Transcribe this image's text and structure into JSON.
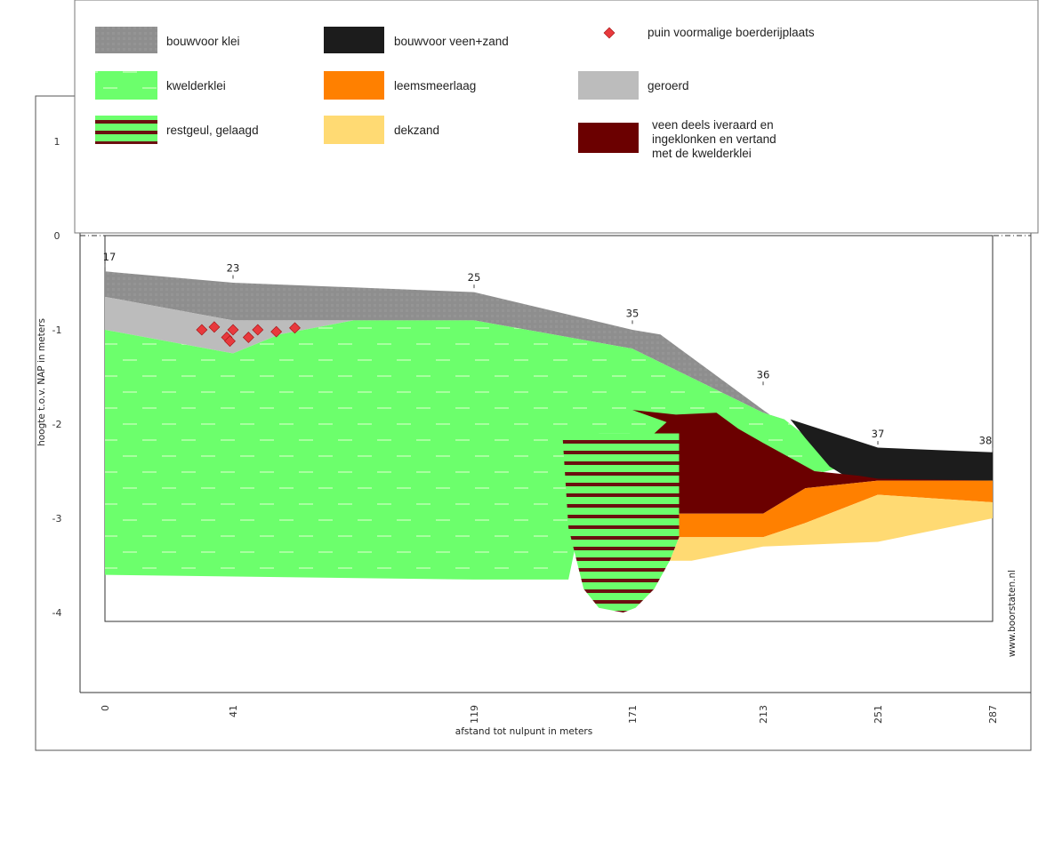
{
  "chart_data": {
    "type": "area",
    "title": "",
    "xlabel": "afstand tot nulpunt in meters",
    "ylabel": "hoogte t.o.v. NAP in meters",
    "x_ticks": [
      0,
      41,
      119,
      171,
      213,
      251,
      287
    ],
    "y_ticks": [
      1,
      0,
      -1,
      -2,
      -3,
      -4
    ],
    "xlim": [
      0,
      287
    ],
    "ylim": [
      -4.5,
      1.6
    ],
    "boreholes": [
      {
        "label": "17",
        "x": 0
      },
      {
        "label": "23",
        "x": 41
      },
      {
        "label": "25",
        "x": 119
      },
      {
        "label": "35",
        "x": 171
      },
      {
        "label": "36",
        "x": 213
      },
      {
        "label": "37",
        "x": 251
      },
      {
        "label": "38",
        "x": 287
      }
    ],
    "legend": [
      {
        "key": "bouwvoor_klei",
        "label": "bouwvoor klei",
        "color": "#8e8e8e"
      },
      {
        "key": "bouwvoor_veen_zand",
        "label": "bouwvoor veen+zand",
        "color": "#1c1c1c"
      },
      {
        "key": "puin",
        "label": "puin voormalige boerderijplaats",
        "color": "#e8393d"
      },
      {
        "key": "kwelderklei",
        "label": "kwelderklei",
        "color": "#6cff6c"
      },
      {
        "key": "leemsmeerlaag",
        "label": "leemsmeerlaag",
        "color": "#ff8000"
      },
      {
        "key": "geroerd",
        "label": "geroerd",
        "color": "#bcbcbc"
      },
      {
        "key": "restgeul",
        "label": "restgeul, gelaagd",
        "color": "#6b1010"
      },
      {
        "key": "dekzand",
        "label": "dekzand",
        "color": "#ffda73"
      },
      {
        "key": "veen",
        "label": "veen deels iveraard en ingeklonken en vertand met de kwelderklei",
        "color": "#6b0000"
      }
    ],
    "series": [
      {
        "key": "bouwvoor_klei",
        "polygon": [
          [
            0,
            -0.38
          ],
          [
            41,
            -0.5
          ],
          [
            119,
            -0.6
          ],
          [
            171,
            -1.0
          ],
          [
            180,
            -1.05
          ],
          [
            213,
            -1.85
          ],
          [
            235,
            -2.35
          ],
          [
            220,
            -1.95
          ],
          [
            213,
            -1.88
          ],
          [
            171,
            -1.2
          ],
          [
            119,
            -0.9
          ],
          [
            80,
            -0.9
          ],
          [
            41,
            -0.9
          ],
          [
            0,
            -0.65
          ]
        ]
      },
      {
        "key": "geroerd",
        "polygon": [
          [
            0,
            -0.65
          ],
          [
            41,
            -0.9
          ],
          [
            80,
            -0.9
          ],
          [
            56,
            -1.05
          ],
          [
            41,
            -1.25
          ],
          [
            0,
            -1.0
          ]
        ]
      },
      {
        "key": "kwelderklei",
        "polygon": [
          [
            0,
            -1.0
          ],
          [
            41,
            -1.25
          ],
          [
            56,
            -1.05
          ],
          [
            80,
            -0.9
          ],
          [
            119,
            -0.9
          ],
          [
            171,
            -1.2
          ],
          [
            213,
            -1.88
          ],
          [
            220,
            -1.95
          ],
          [
            240,
            -2.45
          ],
          [
            222,
            -2.6
          ],
          [
            210,
            -2.55
          ],
          [
            186,
            -2.3
          ],
          [
            171,
            -2.2
          ],
          [
            168,
            -1.85
          ],
          [
            182,
            -1.95
          ],
          [
            178,
            -2.1
          ],
          [
            160,
            -2.1
          ],
          [
            150,
            -3.65
          ],
          [
            119,
            -3.65
          ],
          [
            0,
            -3.6
          ]
        ]
      },
      {
        "key": "bouwvoor_veen_zand",
        "polygon": [
          [
            222,
            -1.95
          ],
          [
            251,
            -2.25
          ],
          [
            287,
            -2.3
          ],
          [
            287,
            -2.6
          ],
          [
            251,
            -2.6
          ],
          [
            240,
            -2.55
          ],
          [
            235,
            -2.45
          ],
          [
            227,
            -2.15
          ]
        ]
      },
      {
        "key": "veen",
        "polygon": [
          [
            171,
            -1.85
          ],
          [
            185,
            -1.9
          ],
          [
            198,
            -1.88
          ],
          [
            205,
            -2.05
          ],
          [
            213,
            -2.2
          ],
          [
            230,
            -2.5
          ],
          [
            245,
            -2.55
          ],
          [
            251,
            -2.58
          ],
          [
            287,
            -2.6
          ],
          [
            251,
            -2.6
          ],
          [
            227,
            -2.68
          ],
          [
            213,
            -2.95
          ],
          [
            192,
            -2.95
          ],
          [
            186,
            -2.95
          ],
          [
            186,
            -2.1
          ],
          [
            178,
            -2.1
          ],
          [
            182,
            -1.98
          ]
        ]
      },
      {
        "key": "leemsmeerlaag",
        "polygon": [
          [
            186,
            -2.95
          ],
          [
            213,
            -2.95
          ],
          [
            227,
            -2.68
          ],
          [
            251,
            -2.6
          ],
          [
            287,
            -2.6
          ],
          [
            287,
            -2.83
          ],
          [
            251,
            -2.75
          ],
          [
            227,
            -3.05
          ],
          [
            213,
            -3.2
          ],
          [
            186,
            -3.2
          ]
        ]
      },
      {
        "key": "dekzand",
        "polygon": [
          [
            186,
            -3.2
          ],
          [
            213,
            -3.2
          ],
          [
            227,
            -3.05
          ],
          [
            251,
            -2.75
          ],
          [
            287,
            -2.83
          ],
          [
            287,
            -3.0
          ],
          [
            251,
            -3.25
          ],
          [
            213,
            -3.3
          ],
          [
            190,
            -3.45
          ],
          [
            183,
            -3.45
          ]
        ]
      },
      {
        "key": "restgeul",
        "polygon": [
          [
            148,
            -2.1
          ],
          [
            186,
            -2.1
          ],
          [
            186,
            -3.2
          ],
          [
            183,
            -3.45
          ],
          [
            178,
            -3.75
          ],
          [
            172,
            -3.95
          ],
          [
            168,
            -4.0
          ],
          [
            160,
            -3.95
          ],
          [
            155,
            -3.75
          ],
          [
            150,
            -3.1
          ]
        ]
      }
    ],
    "puin_points": [
      [
        31,
        -1.0
      ],
      [
        35,
        -0.97
      ],
      [
        39,
        -1.08
      ],
      [
        40,
        -1.12
      ],
      [
        41,
        -1.0
      ],
      [
        46,
        -1.08
      ],
      [
        49,
        -1.0
      ],
      [
        55,
        -1.02
      ],
      [
        61,
        -0.98
      ]
    ],
    "watermark": "www.boorstaten.nl"
  }
}
